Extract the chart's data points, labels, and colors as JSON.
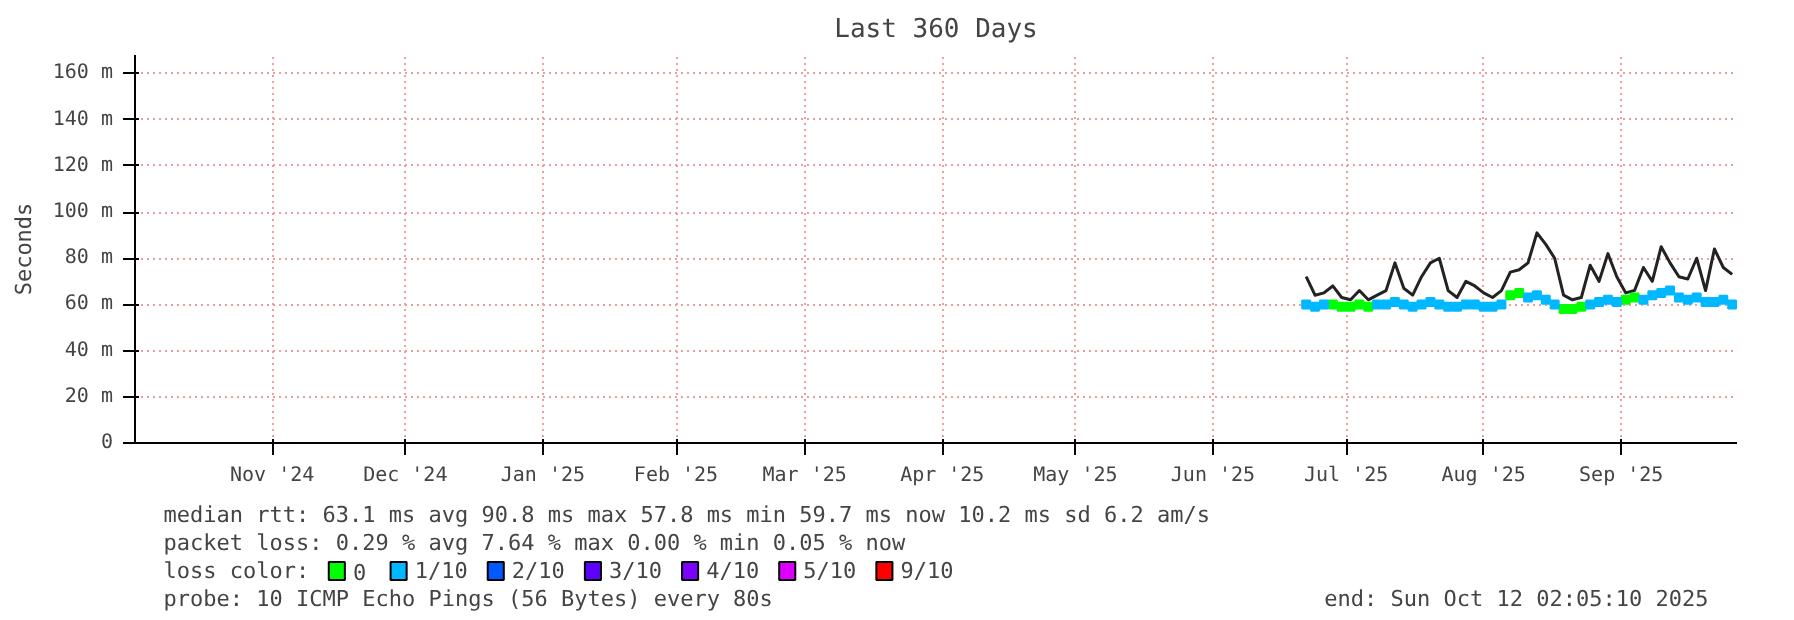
{
  "chart_data": {
    "type": "scatter",
    "title": "Last 360 Days",
    "ylabel": "Seconds",
    "x": [
      "2025-07-07",
      "2025-07-09",
      "2025-07-11",
      "2025-07-13",
      "2025-07-15",
      "2025-07-17",
      "2025-07-19",
      "2025-07-21",
      "2025-07-23",
      "2025-07-25",
      "2025-07-27",
      "2025-07-29",
      "2025-07-31",
      "2025-08-02",
      "2025-08-04",
      "2025-08-06",
      "2025-08-08",
      "2025-08-10",
      "2025-08-12",
      "2025-08-14",
      "2025-08-16",
      "2025-08-18",
      "2025-08-20",
      "2025-08-22",
      "2025-08-24",
      "2025-08-26",
      "2025-08-28",
      "2025-08-30",
      "2025-09-01",
      "2025-09-03",
      "2025-09-05",
      "2025-09-07",
      "2025-09-09",
      "2025-09-11",
      "2025-09-13",
      "2025-09-15",
      "2025-09-17",
      "2025-09-19",
      "2025-09-21",
      "2025-09-23",
      "2025-09-25",
      "2025-09-27",
      "2025-09-29",
      "2025-10-01",
      "2025-10-03",
      "2025-10-05",
      "2025-10-07",
      "2025-10-09",
      "2025-10-11"
    ],
    "series": [
      {
        "type": "line",
        "color": "#222222",
        "values": [
          72,
          64,
          65,
          68,
          63,
          62,
          66,
          62,
          64,
          66,
          78,
          67,
          64,
          72,
          78,
          80,
          66,
          63,
          70,
          68,
          65,
          63,
          66,
          74,
          75,
          78,
          91,
          86,
          80,
          64,
          62,
          63,
          77,
          70,
          82,
          72,
          65,
          66,
          76,
          70,
          85,
          78,
          72,
          71,
          80,
          66,
          84,
          76,
          73
        ]
      },
      {
        "name": "0",
        "color": "#00ff00",
        "marker": "square",
        "values": [
          null,
          null,
          null,
          60,
          59,
          59,
          60,
          59,
          null,
          null,
          null,
          null,
          null,
          null,
          null,
          null,
          null,
          null,
          null,
          null,
          null,
          null,
          null,
          64,
          65,
          null,
          null,
          null,
          null,
          58,
          58,
          59,
          null,
          null,
          null,
          null,
          62,
          63,
          null,
          null,
          null,
          null,
          null,
          null,
          null,
          null,
          null,
          null,
          null
        ]
      },
      {
        "name": "1/10",
        "color": "#00b8ff",
        "marker": "square",
        "values": [
          60,
          59,
          60,
          null,
          null,
          null,
          null,
          null,
          60,
          60,
          61,
          60,
          59,
          60,
          61,
          60,
          59,
          59,
          60,
          60,
          59,
          59,
          60,
          null,
          null,
          63,
          64,
          62,
          60,
          null,
          null,
          null,
          60,
          61,
          62,
          61,
          null,
          null,
          62,
          64,
          65,
          66,
          63,
          62,
          63,
          61,
          61,
          62,
          60
        ]
      },
      {
        "name": "2/10",
        "color": "#0059ff",
        "marker": "square",
        "values": [
          null,
          null,
          null,
          null,
          null,
          null,
          null,
          null,
          null,
          null,
          null,
          null,
          null,
          null,
          null,
          null,
          null,
          null,
          null,
          null,
          null,
          null,
          null,
          null,
          null,
          null,
          null,
          null,
          null,
          null,
          null,
          null,
          null,
          null,
          null,
          null,
          null,
          null,
          null,
          null,
          null,
          null,
          null,
          null,
          null,
          null,
          null,
          null,
          null
        ]
      },
      {
        "name": "3/10",
        "color": "#5e00ff",
        "marker": "square",
        "values": [
          null,
          null,
          null,
          null,
          null,
          null,
          null,
          null,
          null,
          null,
          null,
          null,
          null,
          null,
          null,
          null,
          null,
          null,
          null,
          null,
          null,
          null,
          null,
          null,
          null,
          null,
          null,
          null,
          null,
          null,
          null,
          null,
          null,
          null,
          null,
          null,
          null,
          null,
          null,
          null,
          null,
          null,
          null,
          null,
          null,
          null,
          null,
          null,
          null
        ]
      },
      {
        "name": "4/10",
        "color": "#7e00ff",
        "marker": "square",
        "values": [
          null,
          null,
          null,
          null,
          null,
          null,
          null,
          null,
          null,
          null,
          null,
          null,
          null,
          null,
          null,
          null,
          null,
          null,
          null,
          null,
          null,
          null,
          null,
          null,
          null,
          null,
          null,
          null,
          null,
          null,
          null,
          null,
          null,
          null,
          null,
          null,
          null,
          null,
          null,
          null,
          null,
          null,
          null,
          null,
          null,
          null,
          null,
          null,
          null
        ]
      },
      {
        "name": "5/10",
        "color": "#dd00ff",
        "marker": "square",
        "values": [
          null,
          null,
          null,
          null,
          null,
          null,
          null,
          null,
          null,
          null,
          null,
          null,
          null,
          null,
          null,
          null,
          null,
          null,
          null,
          null,
          null,
          null,
          null,
          null,
          null,
          null,
          null,
          null,
          null,
          null,
          null,
          null,
          null,
          null,
          null,
          null,
          null,
          null,
          null,
          null,
          null,
          null,
          null,
          null,
          null,
          null,
          null,
          null,
          null
        ]
      },
      {
        "name": "9/10",
        "color": "#ff0000",
        "marker": "square",
        "values": [
          null,
          null,
          null,
          null,
          null,
          null,
          null,
          null,
          null,
          null,
          null,
          null,
          null,
          null,
          null,
          null,
          null,
          null,
          null,
          null,
          null,
          null,
          null,
          null,
          null,
          null,
          null,
          null,
          null,
          null,
          null,
          null,
          null,
          null,
          null,
          null,
          null,
          null,
          null,
          null,
          null,
          null,
          null,
          null,
          null,
          null,
          null,
          null,
          null
        ]
      }
    ],
    "marker": "none",
    "legend": "bottom",
    "legend_title": "loss color:",
    "grid": true,
    "xlim": [
      "2024-10-16T02:05",
      "2025-10-12T02:05"
    ],
    "xticks": [
      {
        "value": "2024-11-16",
        "label": "Nov '24"
      },
      {
        "value": "2024-12-16",
        "label": "Dec '24"
      },
      {
        "value": "2025-01-16",
        "label": "Jan '25"
      },
      {
        "value": "2025-02-15",
        "label": "Feb '25"
      },
      {
        "value": "2025-03-16",
        "label": "Mar '25"
      },
      {
        "value": "2025-04-16",
        "label": "Apr '25"
      },
      {
        "value": "2025-05-16",
        "label": "May '25"
      },
      {
        "value": "2025-06-16",
        "label": "Jun '25"
      },
      {
        "value": "2025-07-16",
        "label": "Jul '25"
      },
      {
        "value": "2025-08-16",
        "label": "Aug '25"
      },
      {
        "value": "2025-09-16",
        "label": "Sep '25"
      }
    ],
    "ylim": [
      0,
      168
    ],
    "yticks": [
      0,
      {
        "value": 20,
        "label": "20 m"
      },
      {
        "value": 40,
        "label": "40 m"
      },
      {
        "value": 60,
        "label": "60 m"
      },
      {
        "value": 80,
        "label": "80 m"
      },
      {
        "value": 100,
        "label": "100 m"
      },
      {
        "value": 120,
        "label": "120 m"
      },
      {
        "value": 140,
        "label": "140 m"
      },
      {
        "value": 160,
        "label": "160 m"
      }
    ],
    "annotations": [
      "median rtt:  63.1 ms avg  90.8 ms max  57.8 ms min  59.7 ms now  10.2 ms sd  6.2   am/s",
      "packet loss: 0.29 % avg  7.64 % max  0.00 % min  0.05 % now",
      "probe:       10 ICMP Echo Pings (56 Bytes) every 80s",
      "end: Sun Oct 12 02:05:10 2025"
    ]
  }
}
